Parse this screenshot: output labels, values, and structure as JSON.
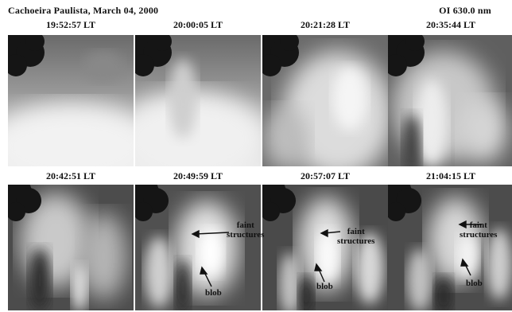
{
  "header": {
    "location_date": "Cachoeira Paulista, March 04, 2000",
    "emission": "OI 630.0 nm"
  },
  "panels": [
    {
      "time": "19:52:57 LT"
    },
    {
      "time": "20:00:05 LT"
    },
    {
      "time": "20:21:28 LT"
    },
    {
      "time": "20:35:44 LT"
    },
    {
      "time": "20:42:51 LT"
    },
    {
      "time": "20:49:59 LT"
    },
    {
      "time": "20:57:07 LT"
    },
    {
      "time": "21:04:15 LT"
    }
  ],
  "annotations": {
    "faint": "faint",
    "structures": "structures",
    "blob": "blob"
  },
  "colors": {
    "background": "#ffffff",
    "text": "#111111",
    "sky_bright": "#f2f2f2",
    "sky_dark": "#3a3a3a",
    "tree": "#141414"
  }
}
